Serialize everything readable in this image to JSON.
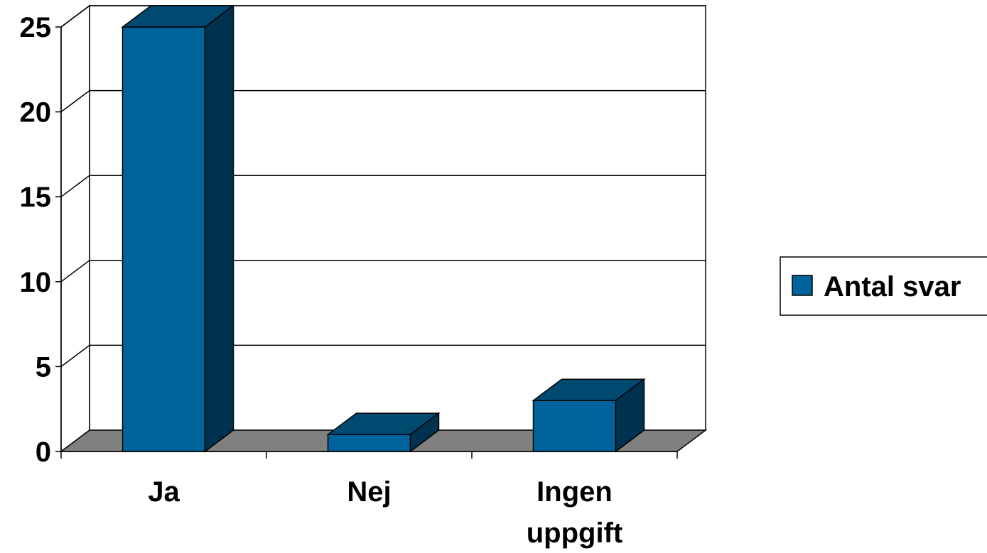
{
  "chart_data": {
    "type": "bar",
    "style": "3d-column",
    "categories": [
      [
        "Ja"
      ],
      [
        "Nej"
      ],
      [
        "Ingen",
        "uppgift"
      ]
    ],
    "series": [
      {
        "name": "Antal svar",
        "values": [
          25,
          1,
          3
        ],
        "color": "#00639b"
      }
    ],
    "ylim": [
      0,
      25
    ],
    "yticks": [
      0,
      5,
      10,
      15,
      20,
      25
    ],
    "grid": true,
    "legend": "right",
    "colors": {
      "bar_front": "#00639b",
      "bar_top": "#004a72",
      "bar_side": "#00324f",
      "floor": "#808080",
      "gridline": "#000000"
    }
  }
}
